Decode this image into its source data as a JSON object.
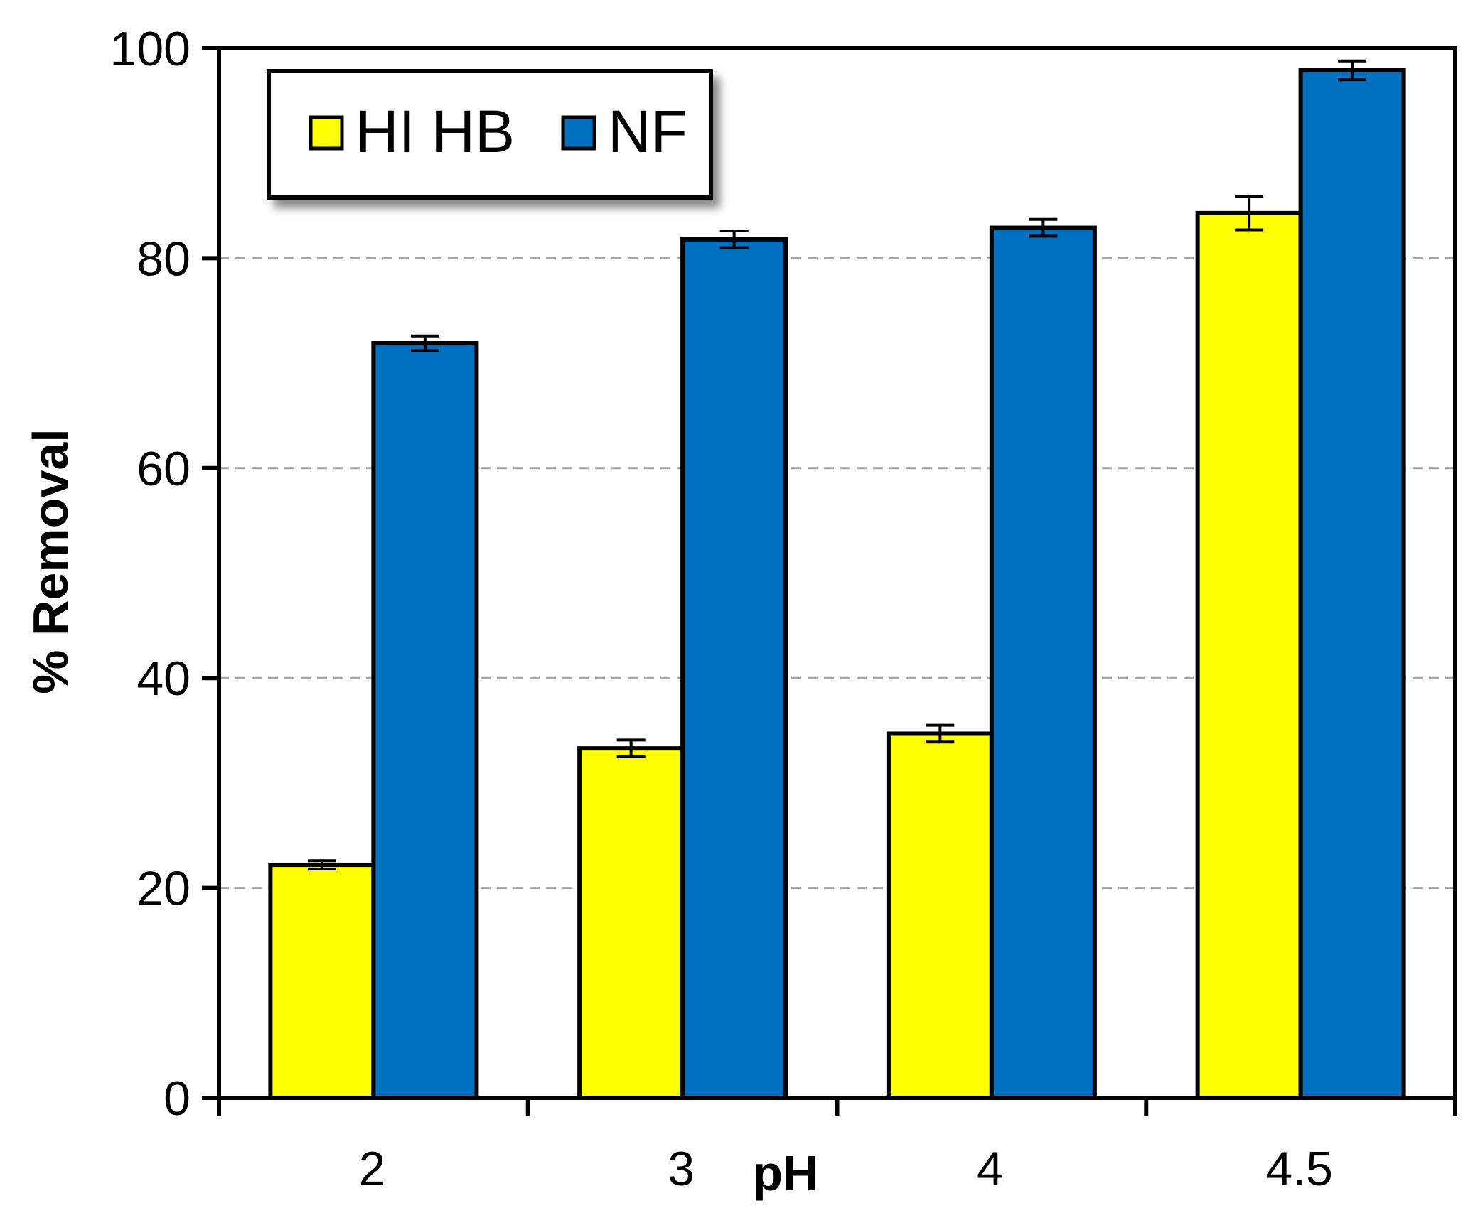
{
  "chart_data": {
    "type": "bar",
    "categories": [
      "2",
      "3",
      "4",
      "4.5"
    ],
    "series": [
      {
        "name": "HI HB",
        "color": "#FFFF00",
        "values": [
          22.2,
          33.3,
          34.7,
          84.3
        ],
        "errors": [
          0.4,
          0.8,
          0.8,
          1.6
        ]
      },
      {
        "name": "NF",
        "color": "#0070C0",
        "values": [
          71.9,
          81.8,
          82.9,
          97.9
        ],
        "errors": [
          0.7,
          0.8,
          0.8,
          0.9
        ]
      }
    ],
    "xlabel": "pH",
    "ylabel": "% Removal",
    "ylim": [
      0,
      100
    ],
    "yticks": [
      0,
      20,
      40,
      60,
      80,
      100
    ],
    "grid": "horizontal dashed",
    "legend": "top-left"
  }
}
